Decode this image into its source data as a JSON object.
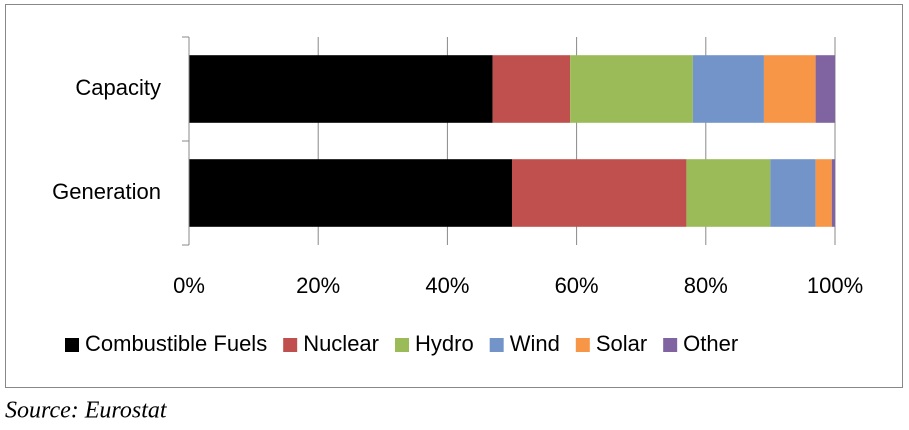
{
  "chart_data": {
    "type": "stacked-barh",
    "categories": [
      "Capacity",
      "Generation"
    ],
    "series": [
      {
        "name": "Combustible Fuels",
        "color": "#000000",
        "values": [
          47,
          50
        ]
      },
      {
        "name": "Nuclear",
        "color": "#c0504d",
        "values": [
          12,
          27
        ]
      },
      {
        "name": "Hydro",
        "color": "#9bbb59",
        "values": [
          19,
          13
        ]
      },
      {
        "name": "Wind",
        "color": "#7394c8",
        "values": [
          11,
          7
        ]
      },
      {
        "name": "Solar",
        "color": "#f79646",
        "values": [
          8,
          2.5
        ]
      },
      {
        "name": "Other",
        "color": "#8064a2",
        "values": [
          3,
          0.5
        ]
      }
    ],
    "xlim": [
      0,
      100
    ],
    "xticks": [
      {
        "value": 0,
        "label": "0%"
      },
      {
        "value": 20,
        "label": "20%"
      },
      {
        "value": 40,
        "label": "40%"
      },
      {
        "value": 60,
        "label": "60%"
      },
      {
        "value": 80,
        "label": "80%"
      },
      {
        "value": 100,
        "label": "100%"
      }
    ],
    "grid": true,
    "legend": "bottom",
    "source": "Source: Eurostat"
  }
}
